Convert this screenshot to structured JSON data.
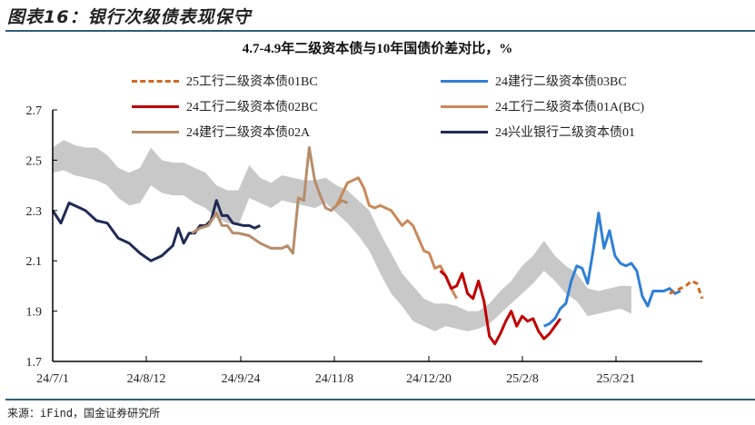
{
  "figure": {
    "title": "图表16：银行次级债表现保守",
    "source": "来源：iFind，国金证券研究所"
  },
  "chart_data": {
    "type": "line",
    "title": "4.7-4.9年二级资本债与10年国债价差对比，%",
    "xlabel": "",
    "ylabel": "",
    "ylim": [
      1.7,
      2.7
    ],
    "y_ticks": [
      "2.7",
      "2.5",
      "2.3",
      "2.1",
      "1.9",
      "1.7"
    ],
    "x_ticks": [
      "24/7/1",
      "24/8/12",
      "24/9/24",
      "24/11/8",
      "24/12/20",
      "25/2/8",
      "25/3/21"
    ],
    "grid": false,
    "legend_position": "top",
    "band": {
      "name": "range band (gray)",
      "color": "#c8c8c8",
      "x_index": [
        0,
        4,
        8,
        12,
        16,
        20,
        24,
        28,
        32,
        36,
        40,
        44,
        48,
        52,
        56,
        60,
        64,
        68,
        72,
        76,
        80,
        84,
        88,
        92,
        96,
        100,
        104,
        108,
        112,
        116,
        120,
        124,
        128,
        132,
        136,
        140,
        144,
        148,
        152,
        156,
        160,
        164,
        168,
        172,
        176,
        180,
        184,
        188,
        192,
        196,
        200,
        204,
        208,
        212
      ],
      "upper": [
        2.55,
        2.58,
        2.56,
        2.55,
        2.55,
        2.52,
        2.47,
        2.45,
        2.47,
        2.55,
        2.5,
        2.49,
        2.49,
        2.47,
        2.45,
        2.4,
        2.38,
        2.38,
        2.48,
        2.43,
        2.41,
        2.44,
        2.43,
        2.42,
        2.42,
        2.43,
        2.4,
        2.38,
        2.34,
        2.3,
        2.21,
        2.13,
        2.05,
        2.0,
        1.95,
        1.93,
        1.93,
        1.92,
        1.9,
        1.9,
        1.93,
        1.98,
        2.02,
        2.08,
        2.12,
        2.18,
        2.12,
        2.08,
        2.05,
        1.99,
        1.98,
        1.99,
        2.0,
        2.0
      ],
      "lower": [
        2.45,
        2.46,
        2.44,
        2.43,
        2.42,
        2.4,
        2.35,
        2.32,
        2.33,
        2.4,
        2.37,
        2.36,
        2.36,
        2.33,
        2.31,
        2.27,
        2.25,
        2.24,
        2.35,
        2.33,
        2.31,
        2.34,
        2.33,
        2.32,
        2.31,
        2.33,
        2.29,
        2.25,
        2.2,
        2.14,
        2.05,
        1.97,
        1.92,
        1.86,
        1.84,
        1.82,
        1.84,
        1.83,
        1.82,
        1.83,
        1.85,
        1.89,
        1.93,
        1.97,
        2.01,
        2.06,
        2.02,
        1.97,
        1.94,
        1.88,
        1.89,
        1.9,
        1.91,
        1.89
      ]
    },
    "series": [
      {
        "name": "24兴业银行二级资本债01",
        "color": "#1f2a55",
        "dash": false,
        "x_index": [
          0,
          3,
          6,
          10,
          12,
          16,
          20,
          24,
          28,
          32,
          36,
          40,
          44,
          46,
          48,
          50,
          52,
          54,
          56,
          58,
          60,
          62,
          64,
          66,
          70,
          72,
          74,
          76
        ],
        "values": [
          2.3,
          2.25,
          2.33,
          2.31,
          2.3,
          2.26,
          2.25,
          2.19,
          2.17,
          2.13,
          2.1,
          2.12,
          2.16,
          2.23,
          2.17,
          2.21,
          2.21,
          2.24,
          2.24,
          2.26,
          2.34,
          2.28,
          2.28,
          2.25,
          2.24,
          2.24,
          2.23,
          2.24
        ]
      },
      {
        "name": "24建行二级资本债02A",
        "color": "#b78c6a",
        "dash": false,
        "x_index": [
          51,
          54,
          57,
          60,
          62,
          64,
          66,
          68,
          72,
          76,
          80,
          84,
          86,
          88,
          90,
          92,
          93,
          94,
          96,
          98,
          100,
          102,
          104,
          106,
          108
        ],
        "values": [
          2.21,
          2.23,
          2.24,
          2.29,
          2.24,
          2.24,
          2.21,
          2.21,
          2.2,
          2.17,
          2.15,
          2.15,
          2.16,
          2.13,
          2.35,
          2.34,
          2.45,
          2.55,
          2.42,
          2.36,
          2.31,
          2.3,
          2.32,
          2.34,
          2.33
        ]
      },
      {
        "name": "24工行二级资本债01A(BC)",
        "color": "#c9895a",
        "dash": false,
        "x_index": [
          104,
          108,
          110,
          112,
          114,
          116,
          118,
          120,
          124,
          128,
          130,
          132,
          134,
          136,
          138,
          140,
          142,
          144,
          146,
          148
        ],
        "values": [
          2.32,
          2.41,
          2.42,
          2.43,
          2.39,
          2.32,
          2.31,
          2.32,
          2.3,
          2.24,
          2.26,
          2.24,
          2.19,
          2.14,
          2.13,
          2.07,
          2.08,
          2.04,
          1.99,
          1.95
        ]
      },
      {
        "name": "24工行二级资本债02BC",
        "color": "#c00000",
        "dash": false,
        "x_index": [
          142,
          144,
          146,
          148,
          150,
          152,
          154,
          156,
          158,
          160,
          162,
          164,
          166,
          168,
          170,
          172,
          174,
          176,
          178,
          180,
          182,
          184,
          186
        ],
        "values": [
          2.06,
          2.04,
          1.99,
          2.0,
          2.05,
          1.97,
          1.95,
          2.02,
          1.94,
          1.8,
          1.77,
          1.81,
          1.86,
          1.9,
          1.84,
          1.88,
          1.86,
          1.87,
          1.82,
          1.79,
          1.81,
          1.84,
          1.87
        ]
      },
      {
        "name": "24建行二级资本债03BC",
        "color": "#2f7fd6",
        "dash": false,
        "x_index": [
          180,
          182,
          184,
          186,
          188,
          190,
          192,
          194,
          196,
          198,
          200,
          202,
          204,
          206,
          208,
          210,
          212,
          214,
          216,
          218,
          220,
          222,
          224,
          226,
          228,
          230
        ],
        "values": [
          1.84,
          1.85,
          1.87,
          1.91,
          1.93,
          2.02,
          2.08,
          2.07,
          2.01,
          2.14,
          2.29,
          2.15,
          2.22,
          2.12,
          2.09,
          2.08,
          2.09,
          2.06,
          1.96,
          1.92,
          1.98,
          1.98,
          1.98,
          1.99,
          1.97,
          1.98
        ]
      },
      {
        "name": "25工行二级资本债01BC",
        "color": "#d2691e",
        "dash": true,
        "x_index": [
          226,
          228,
          230,
          232,
          234,
          236,
          238
        ],
        "values": [
          1.97,
          1.98,
          1.99,
          2.0,
          2.02,
          2.01,
          1.95
        ]
      }
    ],
    "x_index_note": "x_index is approximate trading-day index from 24/7/1 (0) to ~25/4/25 (238)"
  }
}
